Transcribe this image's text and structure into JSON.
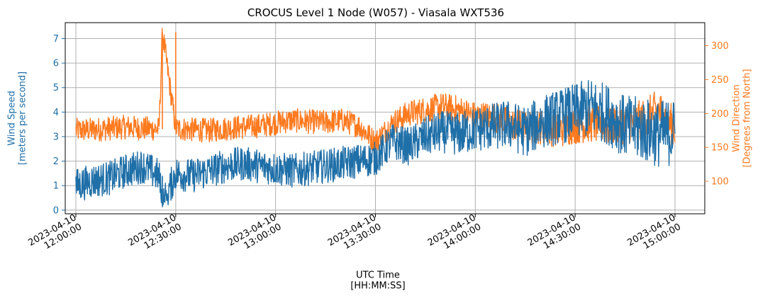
{
  "chart_data": {
    "type": "line",
    "title": "CROCUS Level 1 Node (W057) - Viasala WXT536",
    "xlabel": "UTC Time\n[HH:MM:SS]",
    "ylabel_left": "Wind Speed\n[meters per second]",
    "ylabel_right": "Wind Direction\n[Degrees from North]",
    "x_range": [
      "2023-04-10 12:00:00",
      "2023-04-10 15:00:00"
    ],
    "x_ticks": [
      "2023-04-10\n12:00:00",
      "2023-04-10\n12:30:00",
      "2023-04-10\n13:00:00",
      "2023-04-10\n13:30:00",
      "2023-04-10\n14:00:00",
      "2023-04-10\n14:30:00",
      "2023-04-10\n15:00:00"
    ],
    "ylim_left": [
      -0.15,
      7.65
    ],
    "ylim_right": [
      52,
      334
    ],
    "yticks_left": [
      "0",
      "1",
      "2",
      "3",
      "4",
      "5",
      "6",
      "7"
    ],
    "yticks_right": [
      "100",
      "150",
      "200",
      "250",
      "300"
    ],
    "grid": true,
    "series": [
      {
        "name": "Wind Speed",
        "axis": "left",
        "color": "#1f6fa8",
        "x": [
          "12:00",
          "12:05",
          "12:10",
          "12:15",
          "12:20",
          "12:25",
          "12:26",
          "12:30",
          "12:35",
          "12:40",
          "12:45",
          "12:50",
          "12:55",
          "13:00",
          "13:05",
          "13:10",
          "13:15",
          "13:20",
          "13:25",
          "13:30",
          "13:35",
          "13:40",
          "13:45",
          "13:50",
          "13:55",
          "14:00",
          "14:05",
          "14:10",
          "14:15",
          "14:20",
          "14:25",
          "14:30",
          "14:35",
          "14:40",
          "14:45",
          "14:50",
          "14:55",
          "15:00"
        ],
        "values": [
          1.0,
          1.2,
          1.3,
          1.6,
          1.8,
          1.4,
          0.2,
          1.5,
          1.4,
          1.6,
          1.8,
          1.9,
          1.8,
          1.7,
          1.6,
          1.7,
          1.8,
          1.9,
          2.0,
          2.1,
          2.8,
          2.6,
          3.0,
          3.2,
          3.1,
          3.3,
          3.4,
          3.5,
          3.2,
          3.6,
          3.8,
          4.0,
          4.2,
          3.9,
          3.4,
          3.3,
          3.1,
          3.2
        ]
      },
      {
        "name": "Wind Direction",
        "axis": "right",
        "color": "#ff7a1f",
        "x": [
          "12:00",
          "12:05",
          "12:10",
          "12:15",
          "12:20",
          "12:25",
          "12:26",
          "12:30",
          "12:35",
          "12:40",
          "12:45",
          "12:50",
          "12:55",
          "13:00",
          "13:05",
          "13:10",
          "13:15",
          "13:20",
          "13:25",
          "13:30",
          "13:35",
          "13:40",
          "13:45",
          "13:50",
          "13:55",
          "14:00",
          "14:05",
          "14:10",
          "14:15",
          "14:20",
          "14:25",
          "14:30",
          "14:35",
          "14:40",
          "14:45",
          "14:50",
          "14:55",
          "15:00"
        ],
        "values": [
          175,
          176,
          178,
          180,
          178,
          177,
          320,
          178,
          176,
          175,
          178,
          180,
          182,
          186,
          190,
          188,
          187,
          190,
          182,
          158,
          185,
          200,
          205,
          210,
          205,
          195,
          195,
          185,
          180,
          180,
          175,
          182,
          185,
          180,
          185,
          190,
          205,
          178
        ]
      }
    ]
  }
}
